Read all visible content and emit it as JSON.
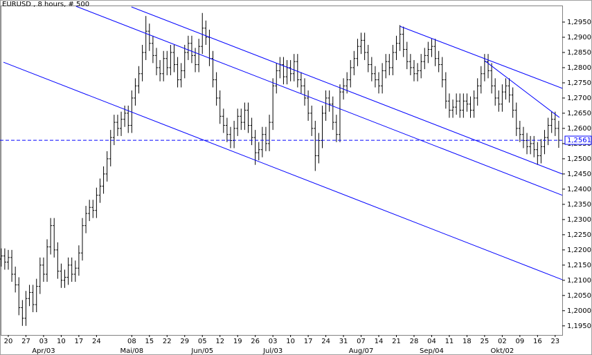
{
  "chart_data": {
    "type": "ohlc",
    "title": "EURUSD , 8 hours, # 500",
    "color": "#000000",
    "line_color": "#0000ff",
    "x": [
      0,
      1,
      2,
      3,
      4,
      5,
      6,
      7,
      8,
      9,
      10,
      11,
      12,
      13,
      14,
      15,
      16,
      17,
      18,
      19,
      20,
      21,
      22,
      23,
      24,
      25,
      26,
      27,
      28,
      29,
      30,
      31,
      32,
      33,
      34,
      35,
      36,
      37,
      38,
      39,
      40,
      41,
      42,
      43,
      44,
      45,
      46,
      47,
      48,
      49,
      50,
      51,
      52,
      53,
      54,
      55,
      56,
      57,
      58,
      59,
      60,
      61,
      62,
      63,
      64,
      65,
      66,
      67,
      68,
      69,
      70,
      71,
      72,
      73,
      74,
      75,
      76,
      77,
      78,
      79,
      80,
      81,
      82,
      83,
      84,
      85,
      86,
      87,
      88,
      89,
      90,
      91,
      92,
      93,
      94,
      95,
      96,
      97,
      98,
      99,
      100,
      101,
      102,
      103,
      104,
      105,
      106,
      107,
      108,
      109,
      110,
      111,
      112,
      113,
      114,
      115,
      116,
      117,
      118,
      119,
      120,
      121,
      122,
      123,
      124,
      125,
      126,
      127,
      128,
      129,
      130,
      131,
      132,
      133,
      134,
      135,
      136,
      137,
      138,
      139,
      140,
      141,
      142,
      143,
      144,
      145,
      146,
      147,
      148,
      149,
      150,
      151,
      152,
      153,
      154,
      155,
      156,
      157,
      158
    ],
    "open": [
      1.217,
      1.218,
      1.216,
      1.2175,
      1.212,
      1.2085,
      1.201,
      1.1975,
      1.204,
      1.206,
      1.202,
      1.208,
      1.215,
      1.212,
      1.221,
      1.228,
      1.22,
      1.213,
      1.21,
      1.211,
      1.215,
      1.212,
      1.214,
      1.219,
      1.228,
      1.232,
      1.234,
      1.233,
      1.238,
      1.241,
      1.245,
      1.25,
      1.257,
      1.262,
      1.26,
      1.263,
      1.265,
      1.261,
      1.27,
      1.274,
      1.278,
      1.285,
      1.292,
      1.288,
      1.284,
      1.28,
      1.278,
      1.283,
      1.28,
      1.285,
      1.281,
      1.276,
      1.279,
      1.285,
      1.288,
      1.284,
      1.281,
      1.287,
      1.293,
      1.29,
      1.283,
      1.276,
      1.27,
      1.264,
      1.261,
      1.258,
      1.256,
      1.26,
      1.264,
      1.262,
      1.266,
      1.261,
      1.257,
      1.252,
      1.253,
      1.258,
      1.255,
      1.262,
      1.274,
      1.279,
      1.281,
      1.277,
      1.28,
      1.278,
      1.282,
      1.276,
      1.274,
      1.27,
      1.265,
      1.26,
      1.251,
      1.256,
      1.265,
      1.27,
      1.268,
      1.262,
      1.258,
      1.272,
      1.274,
      1.276,
      1.28,
      1.283,
      1.287,
      1.289,
      1.285,
      1.281,
      1.278,
      1.276,
      1.274,
      1.279,
      1.282,
      1.28,
      1.285,
      1.288,
      1.291,
      1.286,
      1.282,
      1.28,
      1.278,
      1.279,
      1.282,
      1.284,
      1.286,
      1.287,
      1.283,
      1.281,
      1.276,
      1.269,
      1.266,
      1.267,
      1.269,
      1.266,
      1.269,
      1.268,
      1.266,
      1.27,
      1.274,
      1.278,
      1.282,
      1.279,
      1.274,
      1.27,
      1.268,
      1.272,
      1.274,
      1.271,
      1.266,
      1.26,
      1.258,
      1.256,
      1.254,
      1.255,
      1.253,
      1.251,
      1.254,
      1.257,
      1.261,
      1.263,
      1.26
    ],
    "high": [
      1.2205,
      1.2205,
      1.22,
      1.22,
      1.2145,
      1.211,
      1.2035,
      1.2065,
      1.2085,
      1.2085,
      1.2105,
      1.2175,
      1.2175,
      1.2235,
      1.2305,
      1.2305,
      1.2225,
      1.2155,
      1.2135,
      1.2175,
      1.2175,
      1.2165,
      1.2215,
      1.2305,
      1.2345,
      1.2365,
      1.2365,
      1.2405,
      1.2435,
      1.2475,
      1.2525,
      1.2595,
      1.2645,
      1.2645,
      1.2655,
      1.2675,
      1.2675,
      1.2725,
      1.2765,
      1.2805,
      1.2875,
      1.297,
      1.2945,
      1.2905,
      1.2865,
      1.2825,
      1.2855,
      1.2855,
      1.2875,
      1.2875,
      1.2835,
      1.2815,
      1.2875,
      1.2905,
      1.2905,
      1.2865,
      1.2895,
      1.298,
      1.2955,
      1.2925,
      1.2855,
      1.2785,
      1.2725,
      1.2665,
      1.2635,
      1.2605,
      1.2625,
      1.2665,
      1.2665,
      1.2685,
      1.2685,
      1.2635,
      1.2595,
      1.2555,
      1.2605,
      1.2605,
      1.2645,
      1.2765,
      1.2815,
      1.2835,
      1.2835,
      1.2825,
      1.2825,
      1.2845,
      1.2845,
      1.2785,
      1.2765,
      1.2725,
      1.2675,
      1.2625,
      1.2585,
      1.2675,
      1.2725,
      1.2725,
      1.2705,
      1.2645,
      1.2745,
      1.2765,
      1.2785,
      1.2825,
      1.2855,
      1.2895,
      1.2915,
      1.2915,
      1.2875,
      1.2835,
      1.2805,
      1.2785,
      1.2815,
      1.2845,
      1.2845,
      1.2875,
      1.2905,
      1.294,
      1.2935,
      1.2885,
      1.2845,
      1.2825,
      1.2815,
      1.2845,
      1.2865,
      1.2885,
      1.2895,
      1.2895,
      1.2855,
      1.2835,
      1.2785,
      1.2715,
      1.2695,
      1.2715,
      1.2715,
      1.2715,
      1.2715,
      1.2705,
      1.2725,
      1.2765,
      1.2805,
      1.2845,
      1.2845,
      1.2815,
      1.2765,
      1.2725,
      1.2745,
      1.2765,
      1.2765,
      1.2735,
      1.2685,
      1.2625,
      1.2605,
      1.2585,
      1.2575,
      1.2575,
      1.2555,
      1.2565,
      1.2595,
      1.2635,
      1.2655,
      1.2655,
      1.2625
    ],
    "low": [
      1.2145,
      1.2135,
      1.2135,
      1.2095,
      1.206,
      1.1985,
      1.195,
      1.195,
      1.2015,
      1.1995,
      1.1995,
      1.2055,
      1.2095,
      1.2095,
      1.2185,
      1.2175,
      1.2105,
      1.2075,
      1.2075,
      1.2085,
      1.2095,
      1.2095,
      1.2115,
      1.2165,
      1.2255,
      1.2295,
      1.2305,
      1.2305,
      1.2355,
      1.2385,
      1.2425,
      1.2475,
      1.2545,
      1.2575,
      1.2575,
      1.2605,
      1.2585,
      1.2585,
      1.2675,
      1.2715,
      1.2755,
      1.2825,
      1.2855,
      1.2815,
      1.2775,
      1.2755,
      1.2755,
      1.2775,
      1.2775,
      1.2785,
      1.2735,
      1.2735,
      1.2765,
      1.2825,
      1.2815,
      1.2785,
      1.2785,
      1.2845,
      1.2875,
      1.2805,
      1.2735,
      1.2675,
      1.2615,
      1.2585,
      1.2555,
      1.2535,
      1.2535,
      1.2575,
      1.2595,
      1.2595,
      1.2585,
      1.2545,
      1.248,
      1.2495,
      1.2505,
      1.2525,
      1.2525,
      1.2595,
      1.2715,
      1.2765,
      1.2745,
      1.2745,
      1.2755,
      1.2755,
      1.2735,
      1.2715,
      1.2675,
      1.2625,
      1.2575,
      1.246,
      1.2485,
      1.2535,
      1.2625,
      1.2655,
      1.2595,
      1.2555,
      1.2555,
      1.2695,
      1.2715,
      1.2735,
      1.2775,
      1.2805,
      1.2845,
      1.2825,
      1.2785,
      1.2755,
      1.2735,
      1.2715,
      1.2715,
      1.2765,
      1.2775,
      1.2775,
      1.2825,
      1.2855,
      1.2835,
      1.2795,
      1.2775,
      1.2755,
      1.2755,
      1.2765,
      1.2795,
      1.2815,
      1.2835,
      1.2805,
      1.2785,
      1.2735,
      1.2665,
      1.2635,
      1.2635,
      1.2645,
      1.2635,
      1.2635,
      1.2655,
      1.2635,
      1.2635,
      1.2675,
      1.2715,
      1.2755,
      1.2765,
      1.2715,
      1.2675,
      1.2655,
      1.2655,
      1.2695,
      1.2685,
      1.2635,
      1.2575,
      1.2555,
      1.2535,
      1.2515,
      1.2515,
      1.2505,
      1.248,
      1.2485,
      1.2515,
      1.2545,
      1.2585,
      1.2575,
      1.2536
    ],
    "close": [
      1.218,
      1.216,
      1.2175,
      1.212,
      1.2085,
      1.201,
      1.1975,
      1.204,
      1.206,
      1.202,
      1.208,
      1.215,
      1.212,
      1.221,
      1.228,
      1.22,
      1.213,
      1.21,
      1.211,
      1.215,
      1.212,
      1.214,
      1.219,
      1.228,
      1.232,
      1.234,
      1.233,
      1.238,
      1.241,
      1.245,
      1.25,
      1.257,
      1.262,
      1.26,
      1.263,
      1.265,
      1.261,
      1.27,
      1.274,
      1.278,
      1.285,
      1.292,
      1.288,
      1.284,
      1.28,
      1.278,
      1.283,
      1.28,
      1.285,
      1.281,
      1.276,
      1.279,
      1.285,
      1.288,
      1.284,
      1.281,
      1.287,
      1.293,
      1.29,
      1.283,
      1.276,
      1.27,
      1.264,
      1.261,
      1.258,
      1.256,
      1.26,
      1.264,
      1.262,
      1.266,
      1.261,
      1.257,
      1.252,
      1.253,
      1.258,
      1.255,
      1.262,
      1.274,
      1.279,
      1.281,
      1.277,
      1.28,
      1.278,
      1.282,
      1.276,
      1.274,
      1.27,
      1.265,
      1.26,
      1.251,
      1.256,
      1.265,
      1.27,
      1.268,
      1.262,
      1.258,
      1.272,
      1.274,
      1.276,
      1.28,
      1.283,
      1.287,
      1.289,
      1.285,
      1.281,
      1.278,
      1.276,
      1.274,
      1.279,
      1.282,
      1.28,
      1.285,
      1.288,
      1.291,
      1.286,
      1.282,
      1.28,
      1.278,
      1.279,
      1.282,
      1.284,
      1.286,
      1.287,
      1.283,
      1.281,
      1.276,
      1.269,
      1.266,
      1.267,
      1.269,
      1.266,
      1.269,
      1.268,
      1.266,
      1.27,
      1.274,
      1.278,
      1.282,
      1.279,
      1.274,
      1.27,
      1.268,
      1.272,
      1.274,
      1.271,
      1.266,
      1.26,
      1.258,
      1.256,
      1.254,
      1.255,
      1.253,
      1.251,
      1.254,
      1.257,
      1.261,
      1.263,
      1.26,
      1.2561
    ],
    "xlim": [
      -0.35,
      159
    ],
    "ylim": [
      1.192,
      1.30045
    ],
    "xticks": [
      {
        "value": 2,
        "label": "20"
      },
      {
        "value": 7,
        "label": "27"
      },
      {
        "value": 12,
        "label": "03"
      },
      {
        "value": 17,
        "label": "10"
      },
      {
        "value": 22,
        "label": "17"
      },
      {
        "value": 27,
        "label": "24"
      },
      {
        "value": 37,
        "label": "08"
      },
      {
        "value": 42,
        "label": "15"
      },
      {
        "value": 47,
        "label": "22"
      },
      {
        "value": 52,
        "label": "29"
      },
      {
        "value": 57,
        "label": "05"
      },
      {
        "value": 62,
        "label": "12"
      },
      {
        "value": 67,
        "label": "19"
      },
      {
        "value": 72,
        "label": "26"
      },
      {
        "value": 77,
        "label": "03"
      },
      {
        "value": 82,
        "label": "10"
      },
      {
        "value": 87,
        "label": "17"
      },
      {
        "value": 92,
        "label": "24"
      },
      {
        "value": 97,
        "label": "31"
      },
      {
        "value": 102,
        "label": "07"
      },
      {
        "value": 107,
        "label": "14"
      },
      {
        "value": 112,
        "label": "21"
      },
      {
        "value": 117,
        "label": "28"
      },
      {
        "value": 122,
        "label": "04"
      },
      {
        "value": 127,
        "label": "11"
      },
      {
        "value": 132,
        "label": "18"
      },
      {
        "value": 137,
        "label": "25"
      },
      {
        "value": 142,
        "label": "02"
      },
      {
        "value": 147,
        "label": "09"
      },
      {
        "value": 152,
        "label": "16"
      },
      {
        "value": 157,
        "label": "23"
      }
    ],
    "month_labels": [
      {
        "value": 12,
        "label": "Apr/03"
      },
      {
        "value": 37,
        "label": "Mai/08"
      },
      {
        "value": 57,
        "label": "Jun/05"
      },
      {
        "value": 77,
        "label": "Jul/03"
      },
      {
        "value": 102,
        "label": "Aug/07"
      },
      {
        "value": 122,
        "label": "Sep/04"
      },
      {
        "value": 142,
        "label": "Okt/02"
      }
    ],
    "yticks": [
      {
        "value": 1.195,
        "label": "1,1950"
      },
      {
        "value": 1.2,
        "label": "1,2000"
      },
      {
        "value": 1.205,
        "label": "1,2050"
      },
      {
        "value": 1.21,
        "label": "1,2100"
      },
      {
        "value": 1.215,
        "label": "1,2150"
      },
      {
        "value": 1.22,
        "label": "1,2200"
      },
      {
        "value": 1.225,
        "label": "1,2250"
      },
      {
        "value": 1.23,
        "label": "1,2300"
      },
      {
        "value": 1.235,
        "label": "1,2350"
      },
      {
        "value": 1.24,
        "label": "1,2400"
      },
      {
        "value": 1.245,
        "label": "1,2450"
      },
      {
        "value": 1.25,
        "label": "1,2500"
      },
      {
        "value": 1.255,
        "label": "1,2550"
      },
      {
        "value": 1.26,
        "label": "1,2600"
      },
      {
        "value": 1.265,
        "label": "1,2650"
      },
      {
        "value": 1.27,
        "label": "1,2700"
      },
      {
        "value": 1.275,
        "label": "1,2750"
      },
      {
        "value": 1.28,
        "label": "1,2800"
      },
      {
        "value": 1.285,
        "label": "1,2850"
      },
      {
        "value": 1.29,
        "label": "1,2900"
      },
      {
        "value": 1.295,
        "label": "1,2950"
      }
    ],
    "last_price": {
      "value": 1.2561,
      "label": "1,2561"
    },
    "trend_lines": [
      {
        "x": [
          36.9,
          159
        ],
        "y": [
          1.3,
          1.245
        ]
      },
      {
        "x": [
          21.2,
          159
        ],
        "y": [
          1.3002,
          1.238
        ]
      },
      {
        "x": [
          0.63,
          159
        ],
        "y": [
          1.2818,
          1.2102
        ]
      },
      {
        "x": [
          113.05,
          159
        ],
        "y": [
          1.2936,
          1.2732
        ]
      },
      {
        "x": [
          137,
          158.2
        ],
        "y": [
          1.2823,
          1.2636
        ]
      }
    ],
    "grid": false
  }
}
